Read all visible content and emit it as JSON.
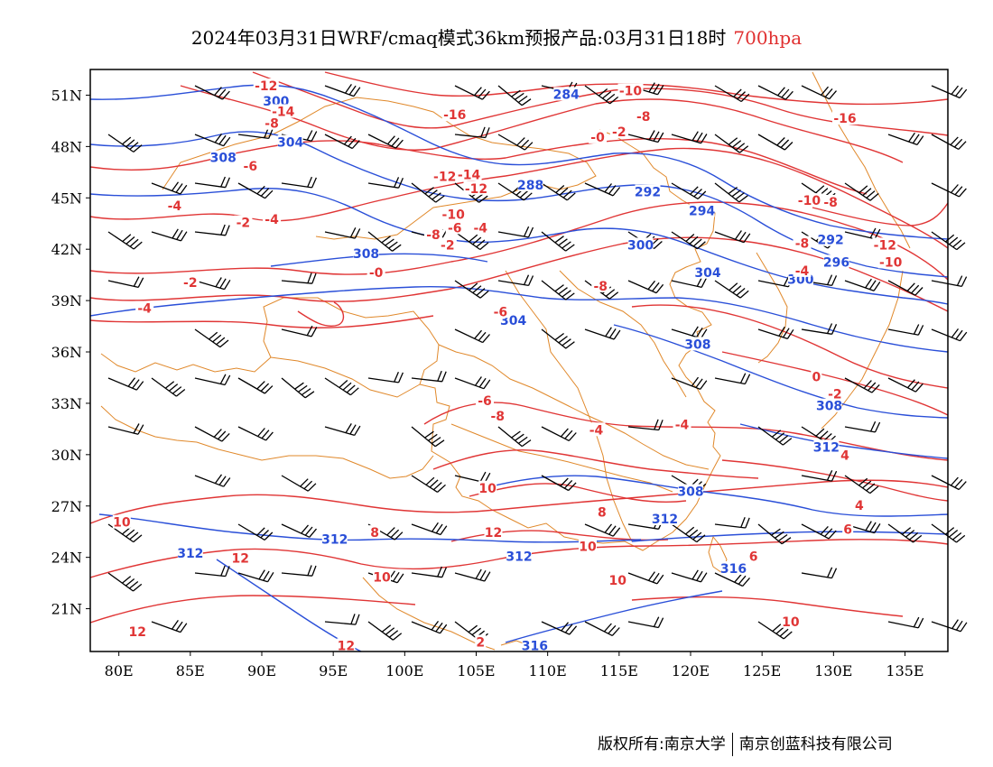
{
  "title": {
    "main": "2024年03月31日WRF/cmaq模式36km预报产品:03月31日18时",
    "level": "700hpa",
    "level_color": "#e03030"
  },
  "footer": {
    "owner_label": "版权所有:",
    "university": "南京大学",
    "company": "南京创蓝科技有限公司"
  },
  "colors": {
    "height_contour": "#2a4fd8",
    "temperature_contour": "#e03535",
    "boundary": "#e0882a",
    "wind_barb": "#000000"
  },
  "chart_data": {
    "type": "contour-map",
    "projection": "lat-lon",
    "xlim": [
      78,
      138
    ],
    "ylim": [
      18.5,
      52.5
    ],
    "x_ticks": [
      80,
      85,
      90,
      95,
      100,
      105,
      110,
      115,
      120,
      125,
      130,
      135
    ],
    "x_tick_labels": [
      "80E",
      "85E",
      "90E",
      "95E",
      "100E",
      "105E",
      "110E",
      "115E",
      "120E",
      "125E",
      "130E",
      "135E"
    ],
    "y_ticks": [
      51,
      48,
      45,
      42,
      39,
      36,
      33,
      30,
      27,
      24,
      21
    ],
    "y_tick_labels": [
      "51N",
      "48N",
      "45N",
      "42N",
      "39N",
      "36N",
      "33N",
      "30N",
      "27N",
      "24N",
      "21N"
    ],
    "height_labels": [
      {
        "lon": 91.0,
        "lat": 50.6,
        "text": "300"
      },
      {
        "lon": 92.0,
        "lat": 48.2,
        "text": "304"
      },
      {
        "lon": 87.3,
        "lat": 47.3,
        "text": "308"
      },
      {
        "lon": 111.3,
        "lat": 51.0,
        "text": "284"
      },
      {
        "lon": 108.8,
        "lat": 45.7,
        "text": "288"
      },
      {
        "lon": 117.0,
        "lat": 45.3,
        "text": "292"
      },
      {
        "lon": 120.8,
        "lat": 44.2,
        "text": "294"
      },
      {
        "lon": 116.5,
        "lat": 42.2,
        "text": "300"
      },
      {
        "lon": 97.3,
        "lat": 41.7,
        "text": "308"
      },
      {
        "lon": 121.2,
        "lat": 40.6,
        "text": "304"
      },
      {
        "lon": 107.6,
        "lat": 37.8,
        "text": "304"
      },
      {
        "lon": 120.5,
        "lat": 36.4,
        "text": "308"
      },
      {
        "lon": 129.8,
        "lat": 42.5,
        "text": "292"
      },
      {
        "lon": 130.2,
        "lat": 41.2,
        "text": "296"
      },
      {
        "lon": 127.7,
        "lat": 40.2,
        "text": "300"
      },
      {
        "lon": 129.7,
        "lat": 32.8,
        "text": "308"
      },
      {
        "lon": 129.5,
        "lat": 30.4,
        "text": "312"
      },
      {
        "lon": 120.0,
        "lat": 27.8,
        "text": "308"
      },
      {
        "lon": 118.2,
        "lat": 26.2,
        "text": "312"
      },
      {
        "lon": 95.1,
        "lat": 25.0,
        "text": "312"
      },
      {
        "lon": 85.0,
        "lat": 24.2,
        "text": "312"
      },
      {
        "lon": 108.0,
        "lat": 24.0,
        "text": "312"
      },
      {
        "lon": 123.0,
        "lat": 23.3,
        "text": "316"
      },
      {
        "lon": 109.1,
        "lat": 18.8,
        "text": "316"
      }
    ],
    "temperature_labels": [
      {
        "lon": 90.3,
        "lat": 51.5,
        "text": "-12"
      },
      {
        "lon": 91.5,
        "lat": 50.0,
        "text": "-14"
      },
      {
        "lon": 90.7,
        "lat": 49.3,
        "text": "-8"
      },
      {
        "lon": 103.5,
        "lat": 49.8,
        "text": "-16"
      },
      {
        "lon": 115.8,
        "lat": 51.2,
        "text": "-10"
      },
      {
        "lon": 116.7,
        "lat": 49.7,
        "text": "-8"
      },
      {
        "lon": 115.0,
        "lat": 48.8,
        "text": "-2"
      },
      {
        "lon": 113.5,
        "lat": 48.5,
        "text": "-0"
      },
      {
        "lon": 89.2,
        "lat": 46.8,
        "text": "-6"
      },
      {
        "lon": 102.8,
        "lat": 46.2,
        "text": "-12"
      },
      {
        "lon": 104.5,
        "lat": 46.3,
        "text": "-14"
      },
      {
        "lon": 105.0,
        "lat": 45.5,
        "text": "-12"
      },
      {
        "lon": 83.9,
        "lat": 44.5,
        "text": "-4"
      },
      {
        "lon": 88.7,
        "lat": 43.5,
        "text": "-2"
      },
      {
        "lon": 90.7,
        "lat": 43.7,
        "text": "-4"
      },
      {
        "lon": 103.4,
        "lat": 44.0,
        "text": "-10"
      },
      {
        "lon": 102.0,
        "lat": 42.8,
        "text": "-8"
      },
      {
        "lon": 103.5,
        "lat": 43.2,
        "text": "-6"
      },
      {
        "lon": 105.3,
        "lat": 43.2,
        "text": "-4"
      },
      {
        "lon": 103.0,
        "lat": 42.2,
        "text": "-2"
      },
      {
        "lon": 98.0,
        "lat": 40.6,
        "text": "-0"
      },
      {
        "lon": 85.0,
        "lat": 40.0,
        "text": "-2"
      },
      {
        "lon": 81.8,
        "lat": 38.5,
        "text": "-4"
      },
      {
        "lon": 106.7,
        "lat": 38.3,
        "text": "-6"
      },
      {
        "lon": 113.7,
        "lat": 39.8,
        "text": "-8"
      },
      {
        "lon": 128.3,
        "lat": 44.8,
        "text": "-10"
      },
      {
        "lon": 129.8,
        "lat": 44.7,
        "text": "-8"
      },
      {
        "lon": 130.8,
        "lat": 49.6,
        "text": "-16"
      },
      {
        "lon": 133.6,
        "lat": 42.2,
        "text": "-12"
      },
      {
        "lon": 134.0,
        "lat": 41.2,
        "text": "-10"
      },
      {
        "lon": 127.8,
        "lat": 42.3,
        "text": "-8"
      },
      {
        "lon": 127.8,
        "lat": 40.7,
        "text": "-4"
      },
      {
        "lon": 128.8,
        "lat": 34.5,
        "text": "0"
      },
      {
        "lon": 130.1,
        "lat": 33.5,
        "text": "-2"
      },
      {
        "lon": 105.6,
        "lat": 33.1,
        "text": "-6"
      },
      {
        "lon": 106.5,
        "lat": 32.2,
        "text": "-8"
      },
      {
        "lon": 113.4,
        "lat": 31.4,
        "text": "-4"
      },
      {
        "lon": 119.4,
        "lat": 31.7,
        "text": "-4"
      },
      {
        "lon": 130.8,
        "lat": 29.9,
        "text": "4"
      },
      {
        "lon": 131.8,
        "lat": 27.0,
        "text": "4"
      },
      {
        "lon": 105.8,
        "lat": 28.0,
        "text": "10"
      },
      {
        "lon": 113.8,
        "lat": 26.6,
        "text": "8"
      },
      {
        "lon": 131.0,
        "lat": 25.6,
        "text": "6"
      },
      {
        "lon": 97.9,
        "lat": 25.4,
        "text": "8"
      },
      {
        "lon": 106.2,
        "lat": 25.4,
        "text": "12"
      },
      {
        "lon": 112.8,
        "lat": 24.6,
        "text": "10"
      },
      {
        "lon": 88.5,
        "lat": 23.9,
        "text": "12"
      },
      {
        "lon": 98.4,
        "lat": 22.8,
        "text": "10"
      },
      {
        "lon": 124.4,
        "lat": 24.0,
        "text": "6"
      },
      {
        "lon": 80.2,
        "lat": 26.0,
        "text": "10"
      },
      {
        "lon": 114.9,
        "lat": 22.6,
        "text": "10"
      },
      {
        "lon": 127.0,
        "lat": 20.2,
        "text": "10"
      },
      {
        "lon": 81.3,
        "lat": 19.6,
        "text": "12"
      },
      {
        "lon": 95.9,
        "lat": 18.8,
        "text": "12"
      },
      {
        "lon": 105.3,
        "lat": 19.0,
        "text": "2"
      }
    ]
  }
}
